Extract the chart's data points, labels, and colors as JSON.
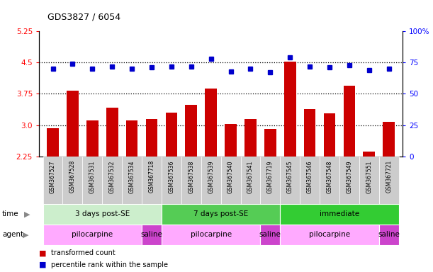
{
  "title": "GDS3827 / 6054",
  "samples": [
    "GSM367527",
    "GSM367528",
    "GSM367531",
    "GSM367532",
    "GSM367534",
    "GSM367718",
    "GSM367536",
    "GSM367538",
    "GSM367539",
    "GSM367540",
    "GSM367541",
    "GSM367719",
    "GSM367545",
    "GSM367546",
    "GSM367548",
    "GSM367549",
    "GSM367551",
    "GSM367721"
  ],
  "bar_values": [
    2.93,
    3.82,
    3.12,
    3.42,
    3.12,
    3.14,
    3.3,
    3.48,
    3.88,
    3.03,
    3.14,
    2.91,
    4.52,
    3.38,
    3.28,
    3.95,
    2.37,
    3.08
  ],
  "dot_values": [
    70,
    74,
    70,
    72,
    70,
    71,
    72,
    72,
    78,
    68,
    70,
    67,
    79,
    72,
    71,
    73,
    69,
    70
  ],
  "ylim_left": [
    2.25,
    5.25
  ],
  "ylim_right": [
    0,
    100
  ],
  "yticks_left": [
    2.25,
    3.0,
    3.75,
    4.5,
    5.25
  ],
  "yticks_right": [
    0,
    25,
    50,
    75,
    100
  ],
  "hlines": [
    3.0,
    3.75,
    4.5
  ],
  "bar_color": "#cc0000",
  "dot_color": "#0000cc",
  "plot_bg": "#ffffff",
  "xlabel_bg": "#d0d0d0",
  "time_groups": [
    {
      "label": "3 days post-SE",
      "start": 0,
      "end": 6,
      "color": "#cceecc"
    },
    {
      "label": "7 days post-SE",
      "start": 6,
      "end": 12,
      "color": "#55cc55"
    },
    {
      "label": "immediate",
      "start": 12,
      "end": 18,
      "color": "#33cc33"
    }
  ],
  "agent_groups": [
    {
      "label": "pilocarpine",
      "start": 0,
      "end": 5,
      "color": "#ffaaff"
    },
    {
      "label": "saline",
      "start": 5,
      "end": 6,
      "color": "#cc44cc"
    },
    {
      "label": "pilocarpine",
      "start": 6,
      "end": 11,
      "color": "#ffaaff"
    },
    {
      "label": "saline",
      "start": 11,
      "end": 12,
      "color": "#cc44cc"
    },
    {
      "label": "pilocarpine",
      "start": 12,
      "end": 17,
      "color": "#ffaaff"
    },
    {
      "label": "saline",
      "start": 17,
      "end": 18,
      "color": "#cc44cc"
    }
  ],
  "legend_items": [
    {
      "label": "transformed count",
      "color": "#cc0000"
    },
    {
      "label": "percentile rank within the sample",
      "color": "#0000cc"
    }
  ]
}
